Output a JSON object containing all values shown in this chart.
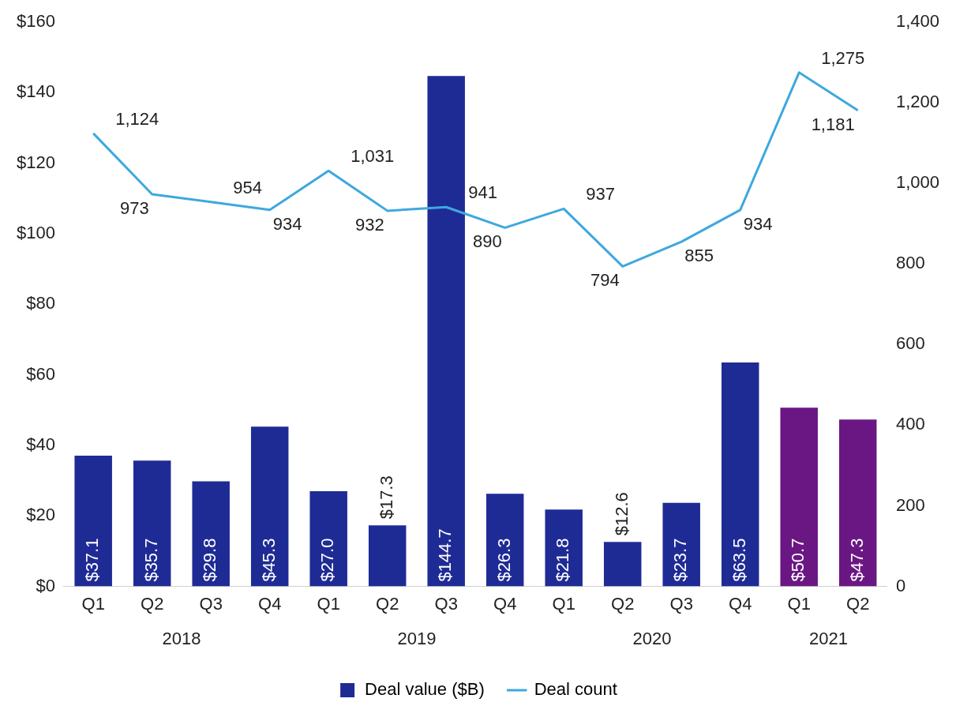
{
  "chart_data": {
    "type": "bar",
    "categories": [
      "Q1",
      "Q2",
      "Q3",
      "Q4",
      "Q1",
      "Q2",
      "Q3",
      "Q4",
      "Q1",
      "Q2",
      "Q3",
      "Q4",
      "Q1",
      "Q2"
    ],
    "series": [
      {
        "name": "Deal value ($B)",
        "axis": "y",
        "color": "#1f2b95",
        "colors": [
          "#1f2b95",
          "#1f2b95",
          "#1f2b95",
          "#1f2b95",
          "#1f2b95",
          "#1f2b95",
          "#1f2b95",
          "#1f2b95",
          "#1f2b95",
          "#1f2b95",
          "#1f2b95",
          "#1f2b95",
          "#6b1783",
          "#6b1783"
        ],
        "values": [
          37.1,
          35.7,
          29.8,
          45.3,
          27.0,
          17.3,
          144.7,
          26.3,
          21.8,
          12.6,
          23.7,
          63.5,
          50.7,
          47.3
        ],
        "value_labels": [
          "$37.1",
          "$35.7",
          "$29.8",
          "$45.3",
          "$27.0",
          "$17.3",
          "$144.7",
          "$26.3",
          "$21.8",
          "$12.6",
          "$23.7",
          "$63.5",
          "$50.7",
          "$47.3"
        ]
      },
      {
        "name": "Deal count",
        "type": "line",
        "axis": "y2",
        "color": "#3ea8de",
        "values": [
          1124,
          973,
          954,
          934,
          1031,
          932,
          941,
          890,
          937,
          794,
          855,
          934,
          1275,
          1181
        ],
        "value_labels": [
          "1,124",
          "973",
          "954",
          "934",
          "1,031",
          "932",
          "941",
          "890",
          "937",
          "794",
          "855",
          "934",
          "1,275",
          "1,181"
        ]
      }
    ],
    "ylim": [
      0,
      160
    ],
    "yticks": [
      {
        "value": 0,
        "label": "$0"
      },
      {
        "value": 20,
        "label": "$20"
      },
      {
        "value": 40,
        "label": "$40"
      },
      {
        "value": 60,
        "label": "$60"
      },
      {
        "value": 80,
        "label": "$80"
      },
      {
        "value": 100,
        "label": "$100"
      },
      {
        "value": 120,
        "label": "$120"
      },
      {
        "value": 140,
        "label": "$140"
      },
      {
        "value": 160,
        "label": "$160"
      }
    ],
    "y2lim": [
      0,
      1400
    ],
    "y2ticks": [
      0,
      200,
      400,
      600,
      800,
      {
        "value": 1000,
        "label": "1,000"
      },
      {
        "value": 1200,
        "label": "1,200"
      },
      {
        "value": 1400,
        "label": "1,400"
      }
    ],
    "annotations": [
      "2018",
      "2019",
      "2020",
      "2021"
    ],
    "grid": false,
    "legend": "bottom",
    "marker": "none",
    "line_style": "solid"
  }
}
